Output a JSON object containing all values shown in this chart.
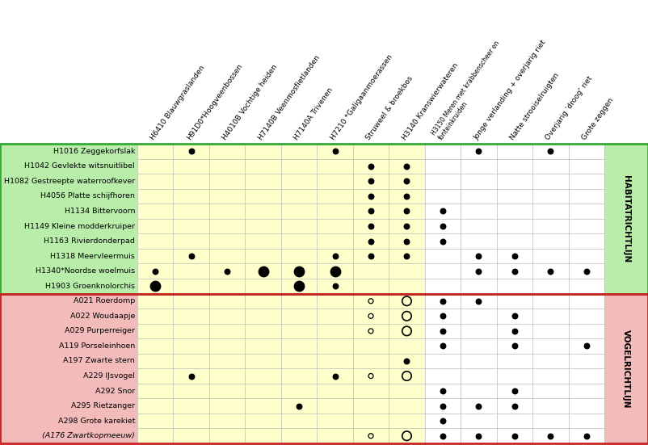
{
  "col_headers": [
    "H6410 Blauwgraslanden",
    "H91D0*Hoogveenbossen",
    "H4010B Vochtige heiden",
    "H7140B Veenmosfietlanden",
    "H7140A Trivenen",
    "H7210 *Galigaanmoerassen",
    "Struweel & broekbos",
    "H3140 Kranswierwateren",
    "H3150 Meren met krabbenscheer en\nfonteinkruiden",
    "Jonge verlanding + overjarig riet",
    "Natte strooiselruigten",
    "Overjarig 'droog' riet",
    "Grote zeggen"
  ],
  "habitat_rows": [
    "H1016 Zeggekorfslak",
    "H1042 Gevlekte witsnuitlibel",
    "H1082 Gestreepte waterroofkever",
    "H4056 Platte schijfhoren",
    "H1134 Bittervoorn",
    "H1149 Kleine modderkruiper",
    "H1163 Rivierdonderpad",
    "H1318 Meervleermuis",
    "H1340*Noordse woelmuis",
    "H1903 Groenknolorchis"
  ],
  "vogel_rows": [
    "A021 Roerdomp",
    "A022 Woudaapje",
    "A029 Purperreiger",
    "A119 Porseleinhoen",
    "A197 Zwarte stern",
    "A229 IJsvogel",
    "A292 Snor",
    "A295 Rietzanger",
    "A298 Grote karekiet",
    "(A176 Zwartkopmeeuw)"
  ],
  "habitat_dots": {
    "H1016 Zeggekorfslak": [
      0,
      1,
      0,
      0,
      0,
      1,
      0,
      0,
      0,
      1,
      0,
      1,
      0
    ],
    "H1042 Gevlekte witsnuitlibel": [
      0,
      0,
      0,
      0,
      0,
      0,
      1,
      1,
      0,
      0,
      0,
      0,
      0
    ],
    "H1082 Gestreepte waterroofkever": [
      0,
      0,
      0,
      0,
      0,
      0,
      1,
      1,
      0,
      0,
      0,
      0,
      0
    ],
    "H4056 Platte schijfhoren": [
      0,
      0,
      0,
      0,
      0,
      0,
      1,
      1,
      0,
      0,
      0,
      0,
      0
    ],
    "H1134 Bittervoorn": [
      0,
      0,
      0,
      0,
      0,
      0,
      1,
      1,
      1,
      0,
      0,
      0,
      0
    ],
    "H1149 Kleine modderkruiper": [
      0,
      0,
      0,
      0,
      0,
      0,
      1,
      1,
      1,
      0,
      0,
      0,
      0
    ],
    "H1163 Rivierdonderpad": [
      0,
      0,
      0,
      0,
      0,
      0,
      1,
      1,
      1,
      0,
      0,
      0,
      0
    ],
    "H1318 Meervleermuis": [
      0,
      1,
      0,
      0,
      0,
      1,
      1,
      1,
      0,
      1,
      1,
      0,
      0
    ],
    "H1340*Noordse woelmuis": [
      1,
      0,
      1,
      2,
      2,
      2,
      0,
      0,
      0,
      1,
      1,
      1,
      1
    ],
    "H1903 Groenknolorchis": [
      2,
      0,
      0,
      0,
      2,
      1,
      0,
      0,
      0,
      0,
      0,
      0,
      0
    ]
  },
  "vogel_dots": {
    "A021 Roerdomp": [
      0,
      0,
      0,
      0,
      0,
      0,
      3,
      4,
      1,
      1,
      0,
      0,
      0
    ],
    "A022 Woudaapje": [
      0,
      0,
      0,
      0,
      0,
      0,
      3,
      4,
      1,
      0,
      1,
      0,
      0
    ],
    "A029 Purperreiger": [
      0,
      0,
      0,
      0,
      0,
      0,
      3,
      4,
      1,
      0,
      1,
      0,
      0
    ],
    "A119 Porseleinhoen": [
      0,
      0,
      0,
      0,
      0,
      0,
      0,
      0,
      1,
      0,
      1,
      0,
      1
    ],
    "A197 Zwarte stern": [
      0,
      0,
      0,
      0,
      0,
      0,
      0,
      1,
      0,
      0,
      0,
      0,
      0
    ],
    "A229 IJsvogel": [
      0,
      1,
      0,
      0,
      0,
      1,
      3,
      4,
      0,
      0,
      0,
      0,
      0
    ],
    "A292 Snor": [
      0,
      0,
      0,
      0,
      0,
      0,
      0,
      0,
      1,
      0,
      1,
      0,
      0
    ],
    "A295 Rietzanger": [
      0,
      0,
      0,
      0,
      1,
      0,
      0,
      0,
      1,
      1,
      1,
      0,
      0
    ],
    "A298 Grote karekiet": [
      0,
      0,
      0,
      0,
      0,
      0,
      0,
      0,
      1,
      0,
      0,
      0,
      0
    ],
    "(A176 Zwartkopmeeuw)": [
      0,
      0,
      0,
      0,
      0,
      0,
      3,
      4,
      1,
      1,
      1,
      1,
      1
    ]
  },
  "yellow_cols": [
    0,
    1,
    2,
    3,
    4,
    5,
    6,
    7
  ],
  "habitat_bg": "#b8eeaa",
  "vogel_bg": "#f4bbbb",
  "yellow_bg": "#ffffcc",
  "white_bg": "#ffffff",
  "grid_color": "#bbbbbb",
  "border_habitat": "#33aa33",
  "border_vogel": "#cc2222",
  "right_label_bg_hab": "#b8eeaa",
  "right_label_bg_vog": "#f4bbbb"
}
